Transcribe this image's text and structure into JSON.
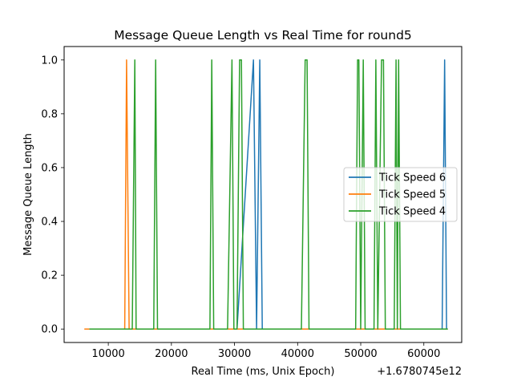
{
  "chart_data": {
    "type": "line",
    "title": "Message Queue Length vs Real Time for round5",
    "xlabel": "Real Time (ms, Unix Epoch)",
    "ylabel": "Message Queue Length",
    "x_offset_label": "+1.6780745e12",
    "xlim": [
      3000,
      66000
    ],
    "ylim": [
      -0.05,
      1.05
    ],
    "xticks": [
      10000,
      20000,
      30000,
      40000,
      50000,
      60000
    ],
    "yticks": [
      0.0,
      0.2,
      0.4,
      0.6,
      0.8,
      1.0
    ],
    "xtick_labels": [
      "10000",
      "20000",
      "30000",
      "40000",
      "50000",
      "60000"
    ],
    "ytick_labels": [
      "0.0",
      "0.2",
      "0.4",
      "0.6",
      "0.8",
      "1.0"
    ],
    "grid": false,
    "legend_position": "center-right",
    "series": [
      {
        "name": "Tick Speed 6",
        "color": "#1f77b4",
        "points": [
          [
            6800,
            0
          ],
          [
            30400,
            0
          ],
          [
            33000,
            1
          ],
          [
            33500,
            0
          ],
          [
            34000,
            1
          ],
          [
            34400,
            0
          ],
          [
            62900,
            0
          ],
          [
            63300,
            1
          ],
          [
            63600,
            0
          ]
        ]
      },
      {
        "name": "Tick Speed 5",
        "color": "#ff7f0e",
        "points": [
          [
            6200,
            0
          ],
          [
            12600,
            0
          ],
          [
            12900,
            1
          ],
          [
            13300,
            0
          ],
          [
            63800,
            0
          ]
        ]
      },
      {
        "name": "Tick Speed 4",
        "color": "#2ca02c",
        "points": [
          [
            7000,
            0
          ],
          [
            13800,
            0
          ],
          [
            14200,
            1
          ],
          [
            14400,
            0
          ],
          [
            17200,
            0
          ],
          [
            17500,
            1
          ],
          [
            17800,
            0
          ],
          [
            26100,
            0
          ],
          [
            26400,
            1
          ],
          [
            26700,
            0
          ],
          [
            28900,
            0
          ],
          [
            29600,
            1
          ],
          [
            29900,
            0
          ],
          [
            30400,
            0
          ],
          [
            30800,
            1
          ],
          [
            31100,
            1
          ],
          [
            31400,
            0
          ],
          [
            40600,
            0
          ],
          [
            41200,
            1
          ],
          [
            41500,
            1
          ],
          [
            41800,
            0
          ],
          [
            49200,
            0
          ],
          [
            49500,
            1
          ],
          [
            49700,
            1
          ],
          [
            50000,
            0
          ],
          [
            50400,
            1
          ],
          [
            50700,
            0
          ],
          [
            52100,
            0
          ],
          [
            52400,
            1
          ],
          [
            52700,
            0
          ],
          [
            53300,
            1
          ],
          [
            53600,
            1
          ],
          [
            53900,
            0
          ],
          [
            55300,
            0
          ],
          [
            55600,
            1
          ],
          [
            55800,
            0
          ],
          [
            56000,
            1
          ],
          [
            56300,
            0
          ],
          [
            63800,
            0
          ]
        ]
      }
    ]
  }
}
